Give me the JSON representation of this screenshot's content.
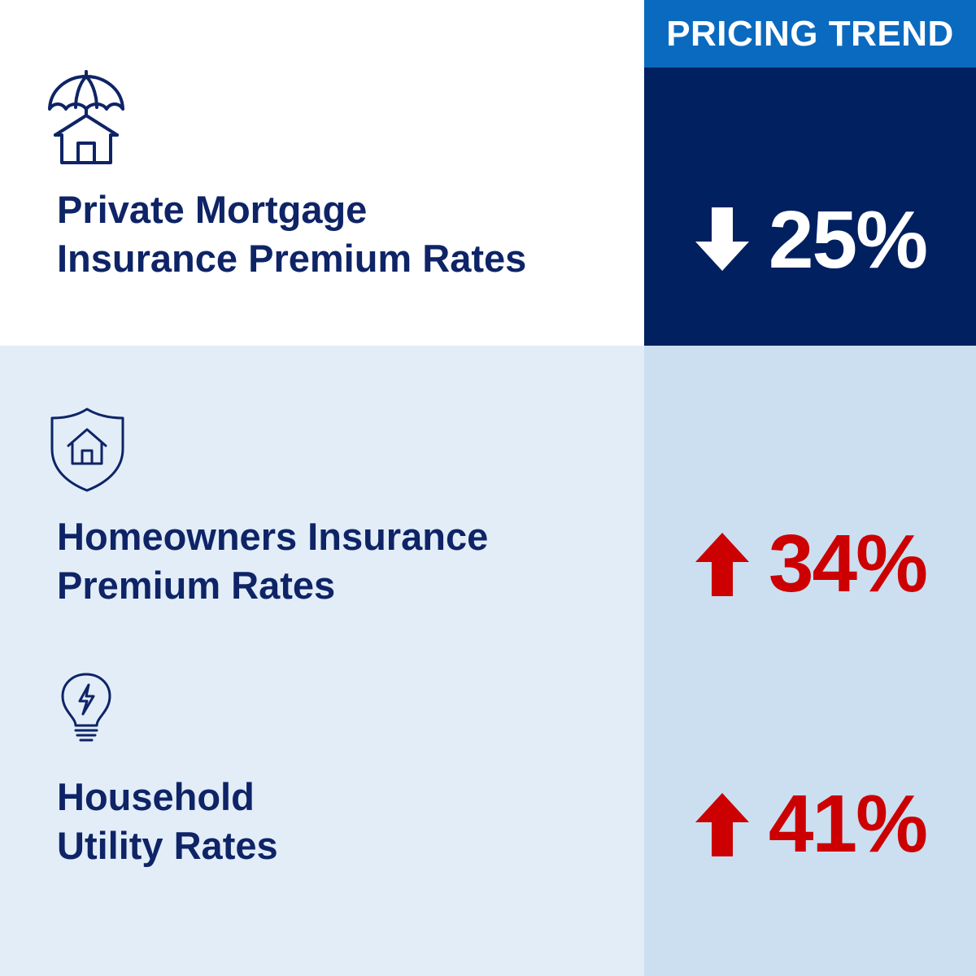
{
  "colors": {
    "navy": "#002060",
    "header_blue": "#0a6abf",
    "light_blue": "#e2edf8",
    "lighter_column": "#cbdff1",
    "label_text": "#0e2466",
    "up_red": "#cc0000",
    "white": "#ffffff"
  },
  "header": {
    "title": "PRICING TREND"
  },
  "rows": [
    {
      "label": "Private Mortgage\nInsurance Premium Rates",
      "icon": "umbrella-house-icon",
      "direction": "down",
      "value": "25%"
    },
    {
      "label": "Homeowners Insurance\nPremium Rates",
      "icon": "shield-house-icon",
      "direction": "up",
      "value": "34%"
    },
    {
      "label": "Household\nUtility Rates",
      "icon": "lightbulb-bolt-icon",
      "direction": "up",
      "value": "41%"
    }
  ]
}
